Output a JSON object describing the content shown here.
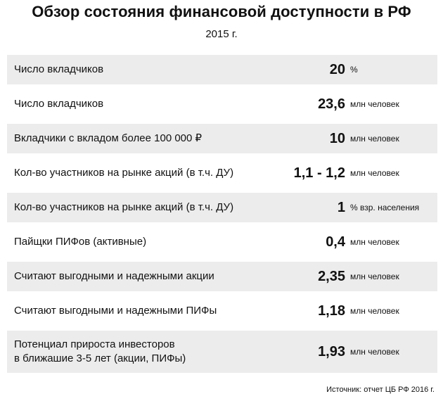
{
  "title": "Обзор состояния финансовой доступности в РФ",
  "subtitle": "2015 г.",
  "rows": [
    {
      "label": "Число вкладчиков",
      "value": "20",
      "unit": "%"
    },
    {
      "label": "Число вкладчиков",
      "value": "23,6",
      "unit": "млн человек"
    },
    {
      "label": "Вкладчики с вкладом более 100 000 ₽",
      "value": "10",
      "unit": "млн человек"
    },
    {
      "label": "Кол-во участников на рынке акций (в т.ч. ДУ)",
      "value": "1,1 - 1,2",
      "unit": "млн человек"
    },
    {
      "label": "Кол-во участников на рынке акций (в т.ч. ДУ)",
      "value": "1",
      "unit": "% взр. населения"
    },
    {
      "label": "Пайщки ПИФов (активные)",
      "value": "0,4",
      "unit": "млн человек"
    },
    {
      "label": "Считают выгодными и надежными акции",
      "value": "2,35",
      "unit": "млн человек"
    },
    {
      "label": "Считают выгодными и надежными ПИФы",
      "value": "1,18",
      "unit": "млн человек"
    },
    {
      "label": "Потенциал прироста инвесторов\nв ближашие 3-5 лет (акции, ПИФы)",
      "value": "1,93",
      "unit": "млн человек"
    }
  ],
  "source": "Источник: отчет ЦБ РФ 2016 г."
}
